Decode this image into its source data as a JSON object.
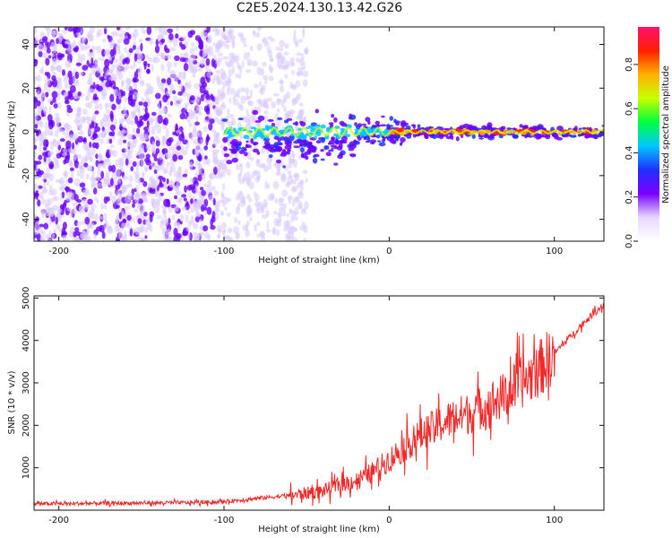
{
  "page": {
    "title": "C2E5.2024.130.13.42.G26"
  },
  "colors": {
    "snr_line": "#f02828",
    "spectrogram_low": "#d8c8ff",
    "spectrogram_mid": "#6a00ff",
    "colormap": [
      "#ffffff",
      "#e8d8ff",
      "#7a00ff",
      "#2030ff",
      "#00c8ff",
      "#00ff40",
      "#c8ff00",
      "#ffb000",
      "#ff2000",
      "#ff1070"
    ]
  },
  "chart_data": [
    {
      "type": "heatmap",
      "title": "C2E5.2024.130.13.42.G26",
      "xlabel": "Height of straight line (km)",
      "ylabel": "Frequency (Hz)",
      "xlim": [
        -215,
        130
      ],
      "ylim": [
        -50,
        48
      ],
      "xticks": [
        -200,
        -100,
        0,
        100
      ],
      "yticks": [
        -40,
        -20,
        0,
        20,
        40
      ],
      "signal_band": {
        "x_start": -100,
        "x_end": 130,
        "center_freq": 0
      },
      "colorbar": {
        "label": "Normalized spectral amplitude",
        "range": [
          0,
          0.97
        ],
        "ticks": [
          0.0,
          0.2,
          0.4,
          0.6,
          0.8
        ]
      }
    },
    {
      "type": "line",
      "xlabel": "Height of straight line (km)",
      "ylabel": "SNR (10 * v/v)",
      "xlim": [
        -215,
        130
      ],
      "ylim": [
        0,
        5050
      ],
      "xticks": [
        -200,
        -100,
        0,
        100
      ],
      "yticks": [
        1000,
        2000,
        3000,
        4000,
        5000
      ],
      "series": [
        {
          "x": [
            -215,
            -180,
            -150,
            -120,
            -100,
            -80,
            -60,
            -40,
            -30,
            -20,
            -10,
            0,
            10,
            20,
            30,
            40,
            50,
            60,
            70,
            80,
            90,
            100,
            110,
            120,
            130
          ],
          "values": [
            150,
            160,
            170,
            180,
            200,
            280,
            350,
            450,
            600,
            700,
            900,
            1200,
            1500,
            1800,
            2000,
            2200,
            2300,
            2500,
            2700,
            3000,
            3300,
            3700,
            4100,
            4500,
            4850
          ]
        }
      ]
    }
  ]
}
